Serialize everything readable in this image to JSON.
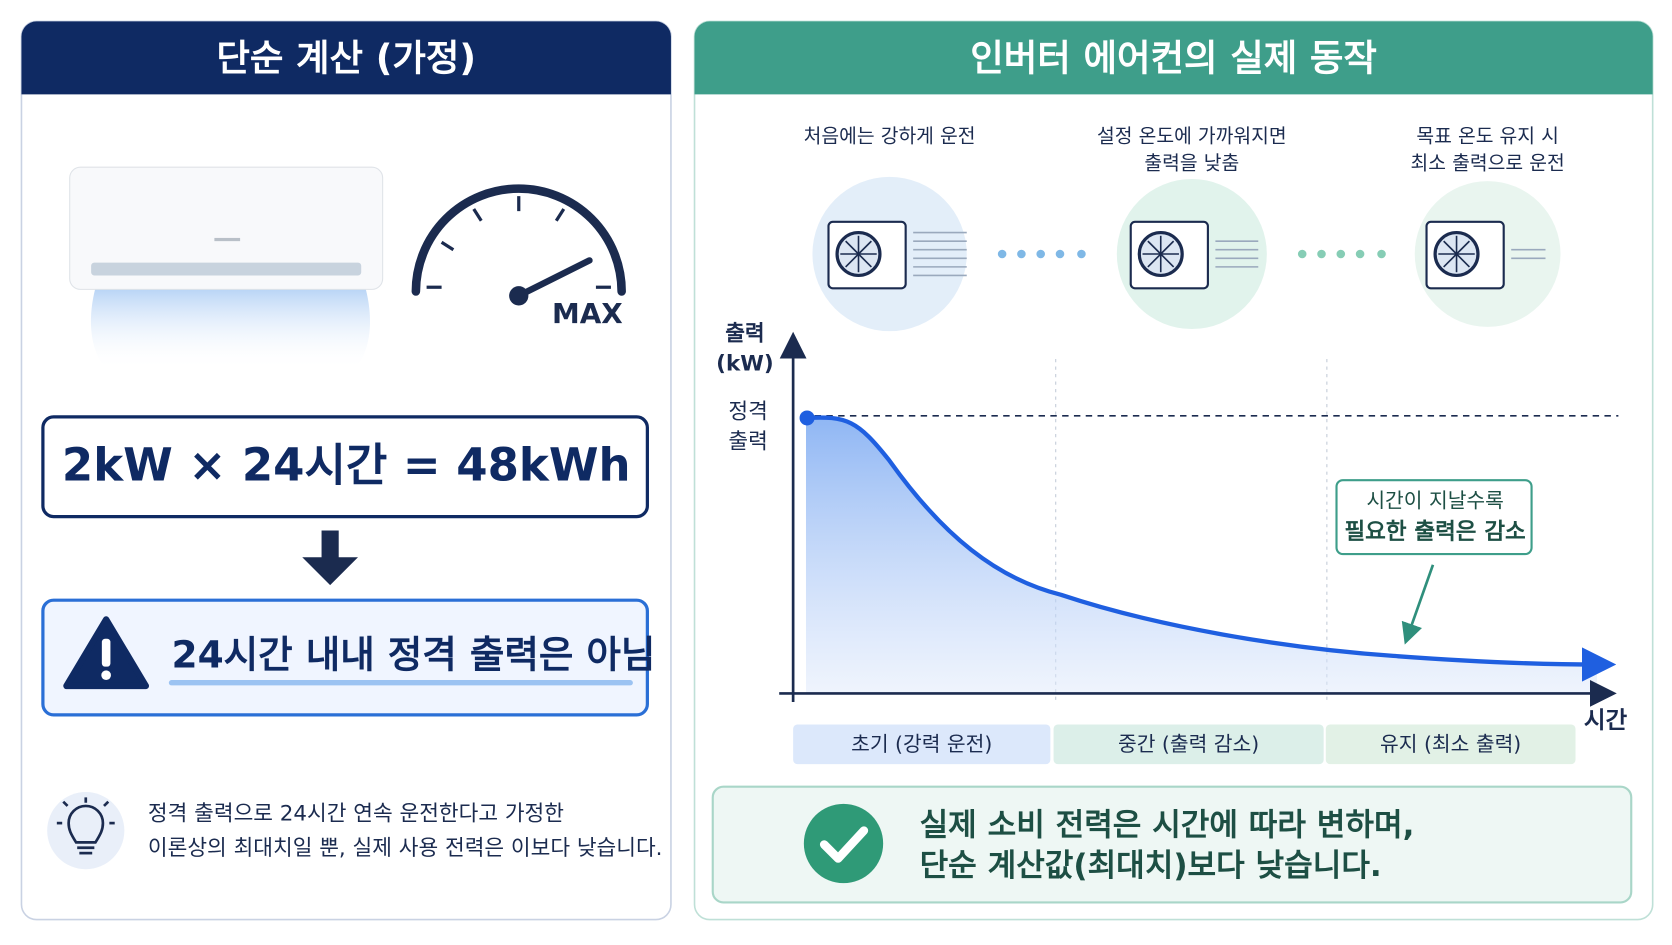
{
  "left_panel": {
    "title": "단순 계산 (가정)",
    "gauge_label": "MAX",
    "formula": "2kW × 24시간 = 48kWh",
    "warning": "24시간 내내 정격 출력은 아님",
    "note_lines": [
      "정격 출력으로 24시간 연속 운전한다고 가정한",
      "이론상의 최대치일 뿐, 실제 사용 전력은 이보다 낮습니다."
    ]
  },
  "right_panel": {
    "title": "인버터 에어컨의 실제 동작",
    "stages": [
      {
        "lines": [
          "처음에는 강하게 운전"
        ]
      },
      {
        "lines": [
          "설정 온도에 가까워지면",
          "출력을 낮춤"
        ]
      },
      {
        "lines": [
          "목표 온도 유지 시",
          "최소 출력으로 운전"
        ]
      }
    ],
    "y_axis_label": [
      "출력",
      "(kW)"
    ],
    "rated_label": [
      "정격",
      "출력"
    ],
    "x_axis_label": "시간",
    "callout": [
      "시간이 지날수록",
      "필요한 출력은 감소"
    ],
    "phases": [
      "초기 (강력 운전)",
      "중간 (출력 감소)",
      "유지 (최소 출력)"
    ],
    "conclusion": [
      "실제 소비 전력은 시간에 따라 변하며,",
      "단순 계산값(최대치)보다 낮습니다."
    ]
  }
}
